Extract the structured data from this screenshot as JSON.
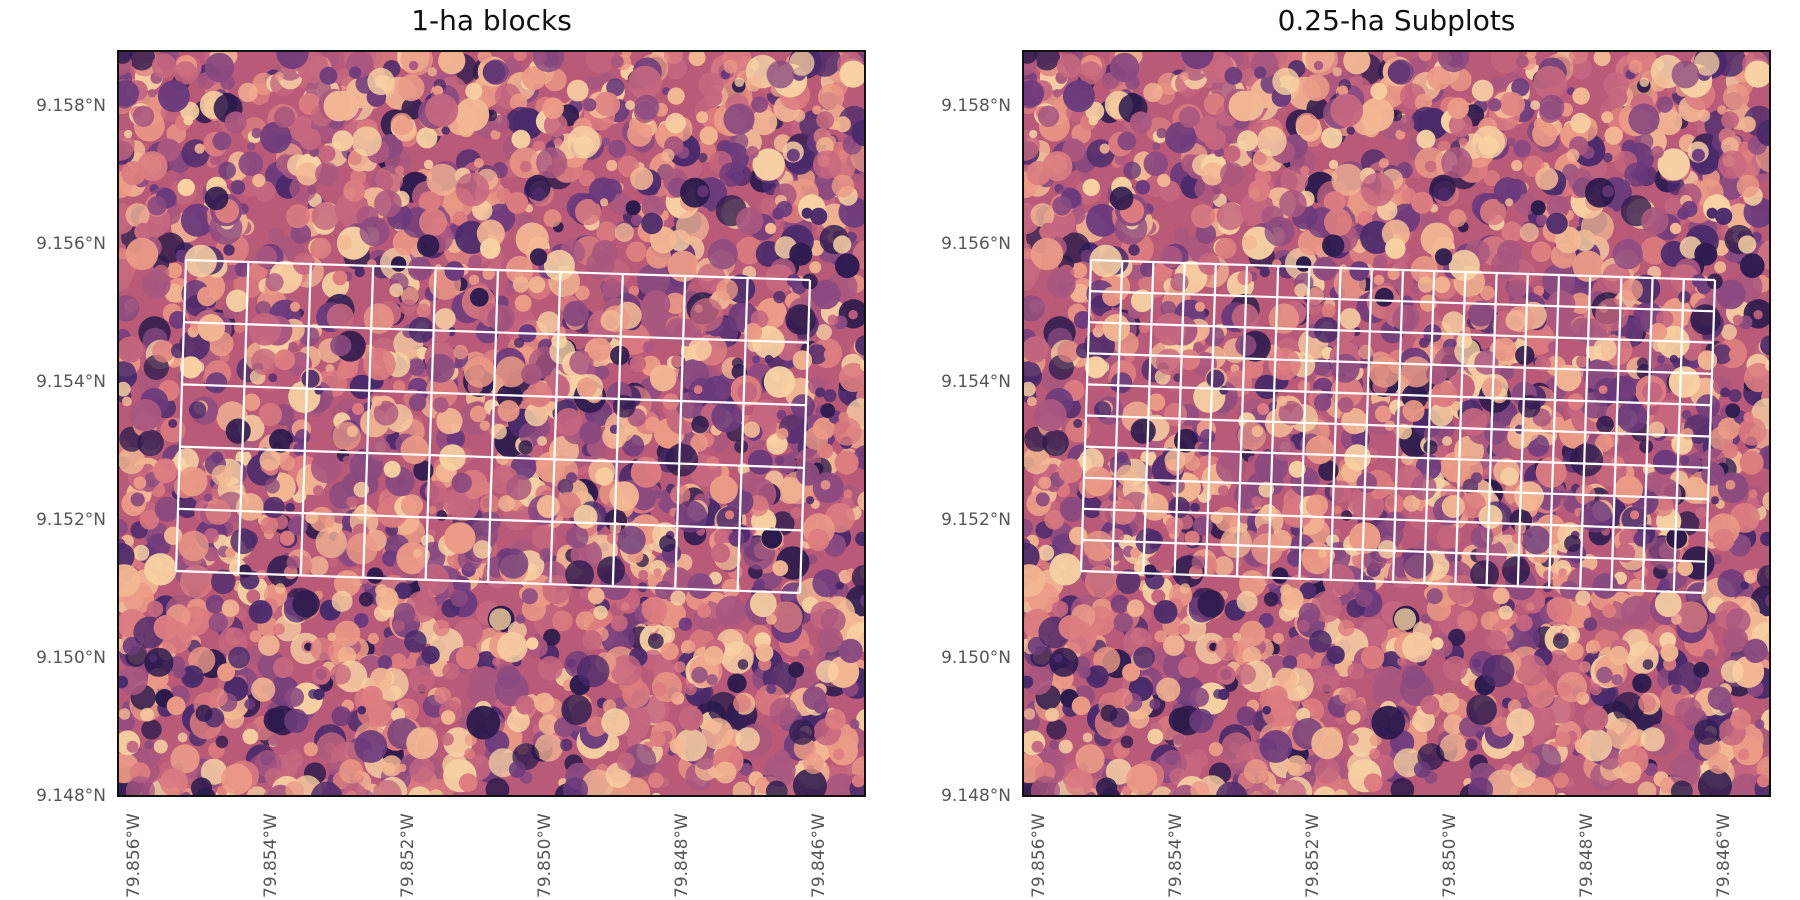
{
  "colors": {
    "grid_line": "#ffffff",
    "frame": "#111111",
    "tick_text": "#555555"
  },
  "map": {
    "basemap": "canopy-height-raster",
    "colormap": "magma-like (dark purple to light peach)",
    "lat_range": [
      9.148,
      9.159
    ],
    "lon_range": [
      -79.857,
      -79.8455
    ]
  },
  "panels": [
    {
      "title": "1-ha blocks",
      "grid": {
        "columns": 10,
        "rows": 5
      },
      "y_ticks": [
        "9.158°N",
        "9.156°N",
        "9.154°N",
        "9.152°N",
        "9.150°N",
        "9.148°N"
      ],
      "x_ticks": [
        "79.856°W",
        "79.854°W",
        "79.852°W",
        "79.850°W",
        "79.848°W",
        "79.846°W"
      ]
    },
    {
      "title": "0.25-ha Subplots",
      "grid": {
        "columns": 20,
        "rows": 10
      },
      "y_ticks": [
        "9.158°N",
        "9.156°N",
        "9.154°N",
        "9.152°N",
        "9.150°N",
        "9.148°N"
      ],
      "x_ticks": [
        "79.856°W",
        "79.854°W",
        "79.852°W",
        "79.850°W",
        "79.848°W",
        "79.846°W"
      ]
    }
  ]
}
